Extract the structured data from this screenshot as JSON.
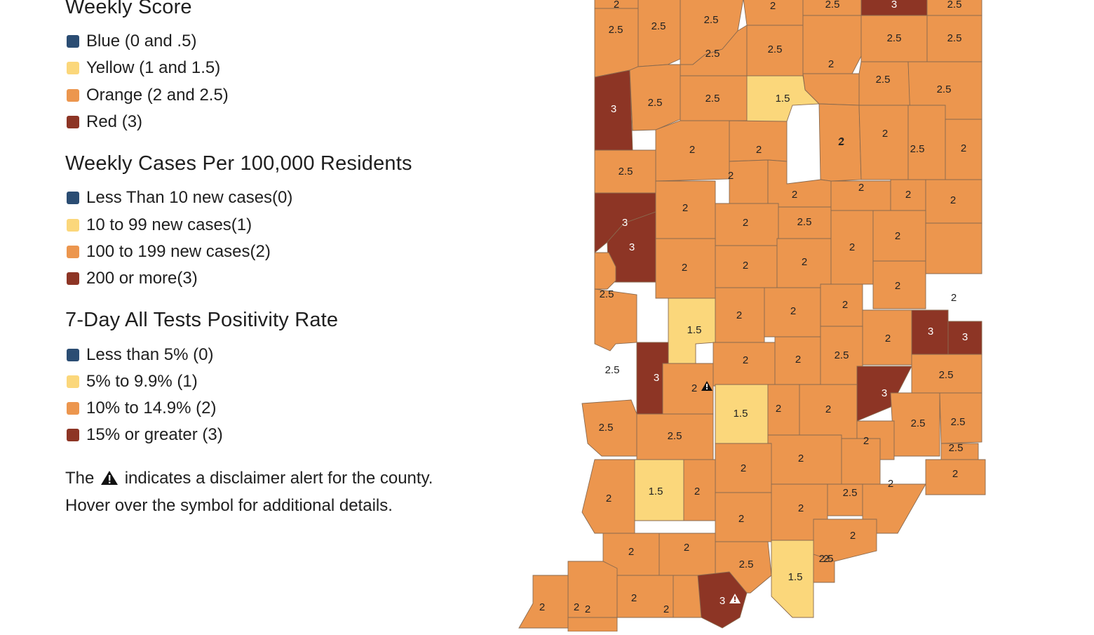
{
  "legend": {
    "sections": [
      {
        "title": "Weekly Score",
        "items": [
          {
            "label": "Blue (0 and .5)",
            "color": "#2b4d73"
          },
          {
            "label": "Yellow (1 and 1.5)",
            "color": "#fbd77b"
          },
          {
            "label": "Orange (2 and 2.5)",
            "color": "#ec964e"
          },
          {
            "label": "Red (3)",
            "color": "#8d3525"
          }
        ]
      },
      {
        "title": "Weekly Cases Per 100,000 Residents",
        "items": [
          {
            "label": "Less Than 10 new cases(0)",
            "color": "#2b4d73"
          },
          {
            "label": "10 to 99 new cases(1)",
            "color": "#fbd77b"
          },
          {
            "label": "100 to 199 new cases(2)",
            "color": "#ec964e"
          },
          {
            "label": "200 or more(3)",
            "color": "#8d3525"
          }
        ]
      },
      {
        "title": "7-Day All Tests Positivity Rate",
        "items": [
          {
            "label": "Less than 5% (0)",
            "color": "#2b4d73"
          },
          {
            "label": "5% to 9.9% (1)",
            "color": "#fbd77b"
          },
          {
            "label": "10% to 14.9% (2)",
            "color": "#ec964e"
          },
          {
            "label": "15% or greater (3)",
            "color": "#8d3525"
          }
        ]
      }
    ],
    "note_before": "The",
    "note_after": "indicates a disclaimer alert for the county.",
    "note_line2": "Hover over the symbol for additional details.",
    "alert_icon": "warning-triangle-icon"
  },
  "map": {
    "colors": {
      "2": "#ec964e",
      "2.5": "#ec964e",
      "1.5": "#fbd77b",
      "3": "#8d3525"
    },
    "counties": [
      {
        "label": "2",
        "alert": false
      },
      {
        "label": "2.5",
        "alert": false
      },
      {
        "label": "3",
        "alert": false
      },
      {
        "label": "2.5",
        "alert": false
      },
      {
        "label": "2.5",
        "alert": false
      },
      {
        "label": "2.5",
        "alert": false
      },
      {
        "label": "2.5",
        "alert": false
      },
      {
        "label": "2.5",
        "alert": false
      },
      {
        "label": "2",
        "alert": false
      },
      {
        "label": "2.5",
        "alert": false
      },
      {
        "label": "2.5",
        "alert": false
      },
      {
        "label": "3",
        "alert": false
      },
      {
        "label": "2.5",
        "alert": false
      },
      {
        "label": "2",
        "alert": false
      },
      {
        "label": "1.5",
        "alert": false
      },
      {
        "label": "2.5",
        "alert": false
      },
      {
        "label": "2.5",
        "alert": false
      },
      {
        "label": "2.5",
        "alert": false
      },
      {
        "label": "2.5",
        "alert": false
      },
      {
        "label": "2",
        "alert": false
      },
      {
        "label": "2",
        "alert": false
      },
      {
        "label": "2",
        "alert": false
      },
      {
        "label": "2.5",
        "alert": false
      },
      {
        "label": "2",
        "alert": false
      },
      {
        "label": "2",
        "alert": false
      },
      {
        "label": "2",
        "alert": false
      },
      {
        "label": "2.5",
        "alert": false
      },
      {
        "label": "2",
        "alert": false
      },
      {
        "label": "2",
        "alert": false
      },
      {
        "label": "3",
        "alert": false
      },
      {
        "label": "2",
        "alert": false
      },
      {
        "label": "2",
        "alert": false
      },
      {
        "label": "2.5",
        "alert": false
      },
      {
        "label": "2",
        "alert": false
      },
      {
        "label": "3",
        "alert": false
      },
      {
        "label": "2",
        "alert": false
      },
      {
        "label": "2",
        "alert": false
      },
      {
        "label": "2",
        "alert": false
      },
      {
        "label": "2",
        "alert": false
      },
      {
        "label": "2",
        "alert": false
      },
      {
        "label": "2",
        "alert": false
      },
      {
        "label": "2",
        "alert": false
      },
      {
        "label": "2.5",
        "alert": false
      },
      {
        "label": "1.5",
        "alert": false
      },
      {
        "label": "2",
        "alert": false
      },
      {
        "label": "2",
        "alert": false
      },
      {
        "label": "2",
        "alert": false
      },
      {
        "label": "2",
        "alert": false
      },
      {
        "label": "2",
        "alert": false
      },
      {
        "label": "3",
        "alert": false
      },
      {
        "label": "3",
        "alert": false
      },
      {
        "label": "2",
        "alert": false
      },
      {
        "label": "3",
        "alert": false
      },
      {
        "label": "2",
        "alert": true
      },
      {
        "label": "2",
        "alert": false
      },
      {
        "label": "2",
        "alert": false
      },
      {
        "label": "2.5",
        "alert": false
      },
      {
        "label": "2.5",
        "alert": false
      },
      {
        "label": "3",
        "alert": false
      },
      {
        "label": "2.5",
        "alert": false
      },
      {
        "label": "2.5",
        "alert": false
      },
      {
        "label": "1.5",
        "alert": false
      },
      {
        "label": "2",
        "alert": false
      },
      {
        "label": "2",
        "alert": false
      },
      {
        "label": "2.5",
        "alert": false
      },
      {
        "label": "2.5",
        "alert": false
      },
      {
        "label": "2.5",
        "alert": false
      },
      {
        "label": "2",
        "alert": false
      },
      {
        "label": "2",
        "alert": false
      },
      {
        "label": "2.5",
        "alert": false
      },
      {
        "label": "2",
        "alert": false
      },
      {
        "label": "2.5",
        "alert": false
      },
      {
        "label": "2",
        "alert": false
      },
      {
        "label": "2",
        "alert": false
      },
      {
        "label": "1.5",
        "alert": false
      },
      {
        "label": "2",
        "alert": false
      },
      {
        "label": "2",
        "alert": false
      },
      {
        "label": "2",
        "alert": false
      },
      {
        "label": "2",
        "alert": false
      },
      {
        "label": "2",
        "alert": false
      },
      {
        "label": "2.5",
        "alert": false
      },
      {
        "label": "2.5",
        "alert": false
      },
      {
        "label": "1.5",
        "alert": false
      },
      {
        "label": "2",
        "alert": false
      },
      {
        "label": "2",
        "alert": false
      },
      {
        "label": "2",
        "alert": false
      },
      {
        "label": "2",
        "alert": false
      },
      {
        "label": "2",
        "alert": false
      },
      {
        "label": "2",
        "alert": false
      },
      {
        "label": "3",
        "alert": true
      },
      {
        "label": "2",
        "alert": false
      },
      {
        "label": "2",
        "alert": false
      }
    ]
  }
}
